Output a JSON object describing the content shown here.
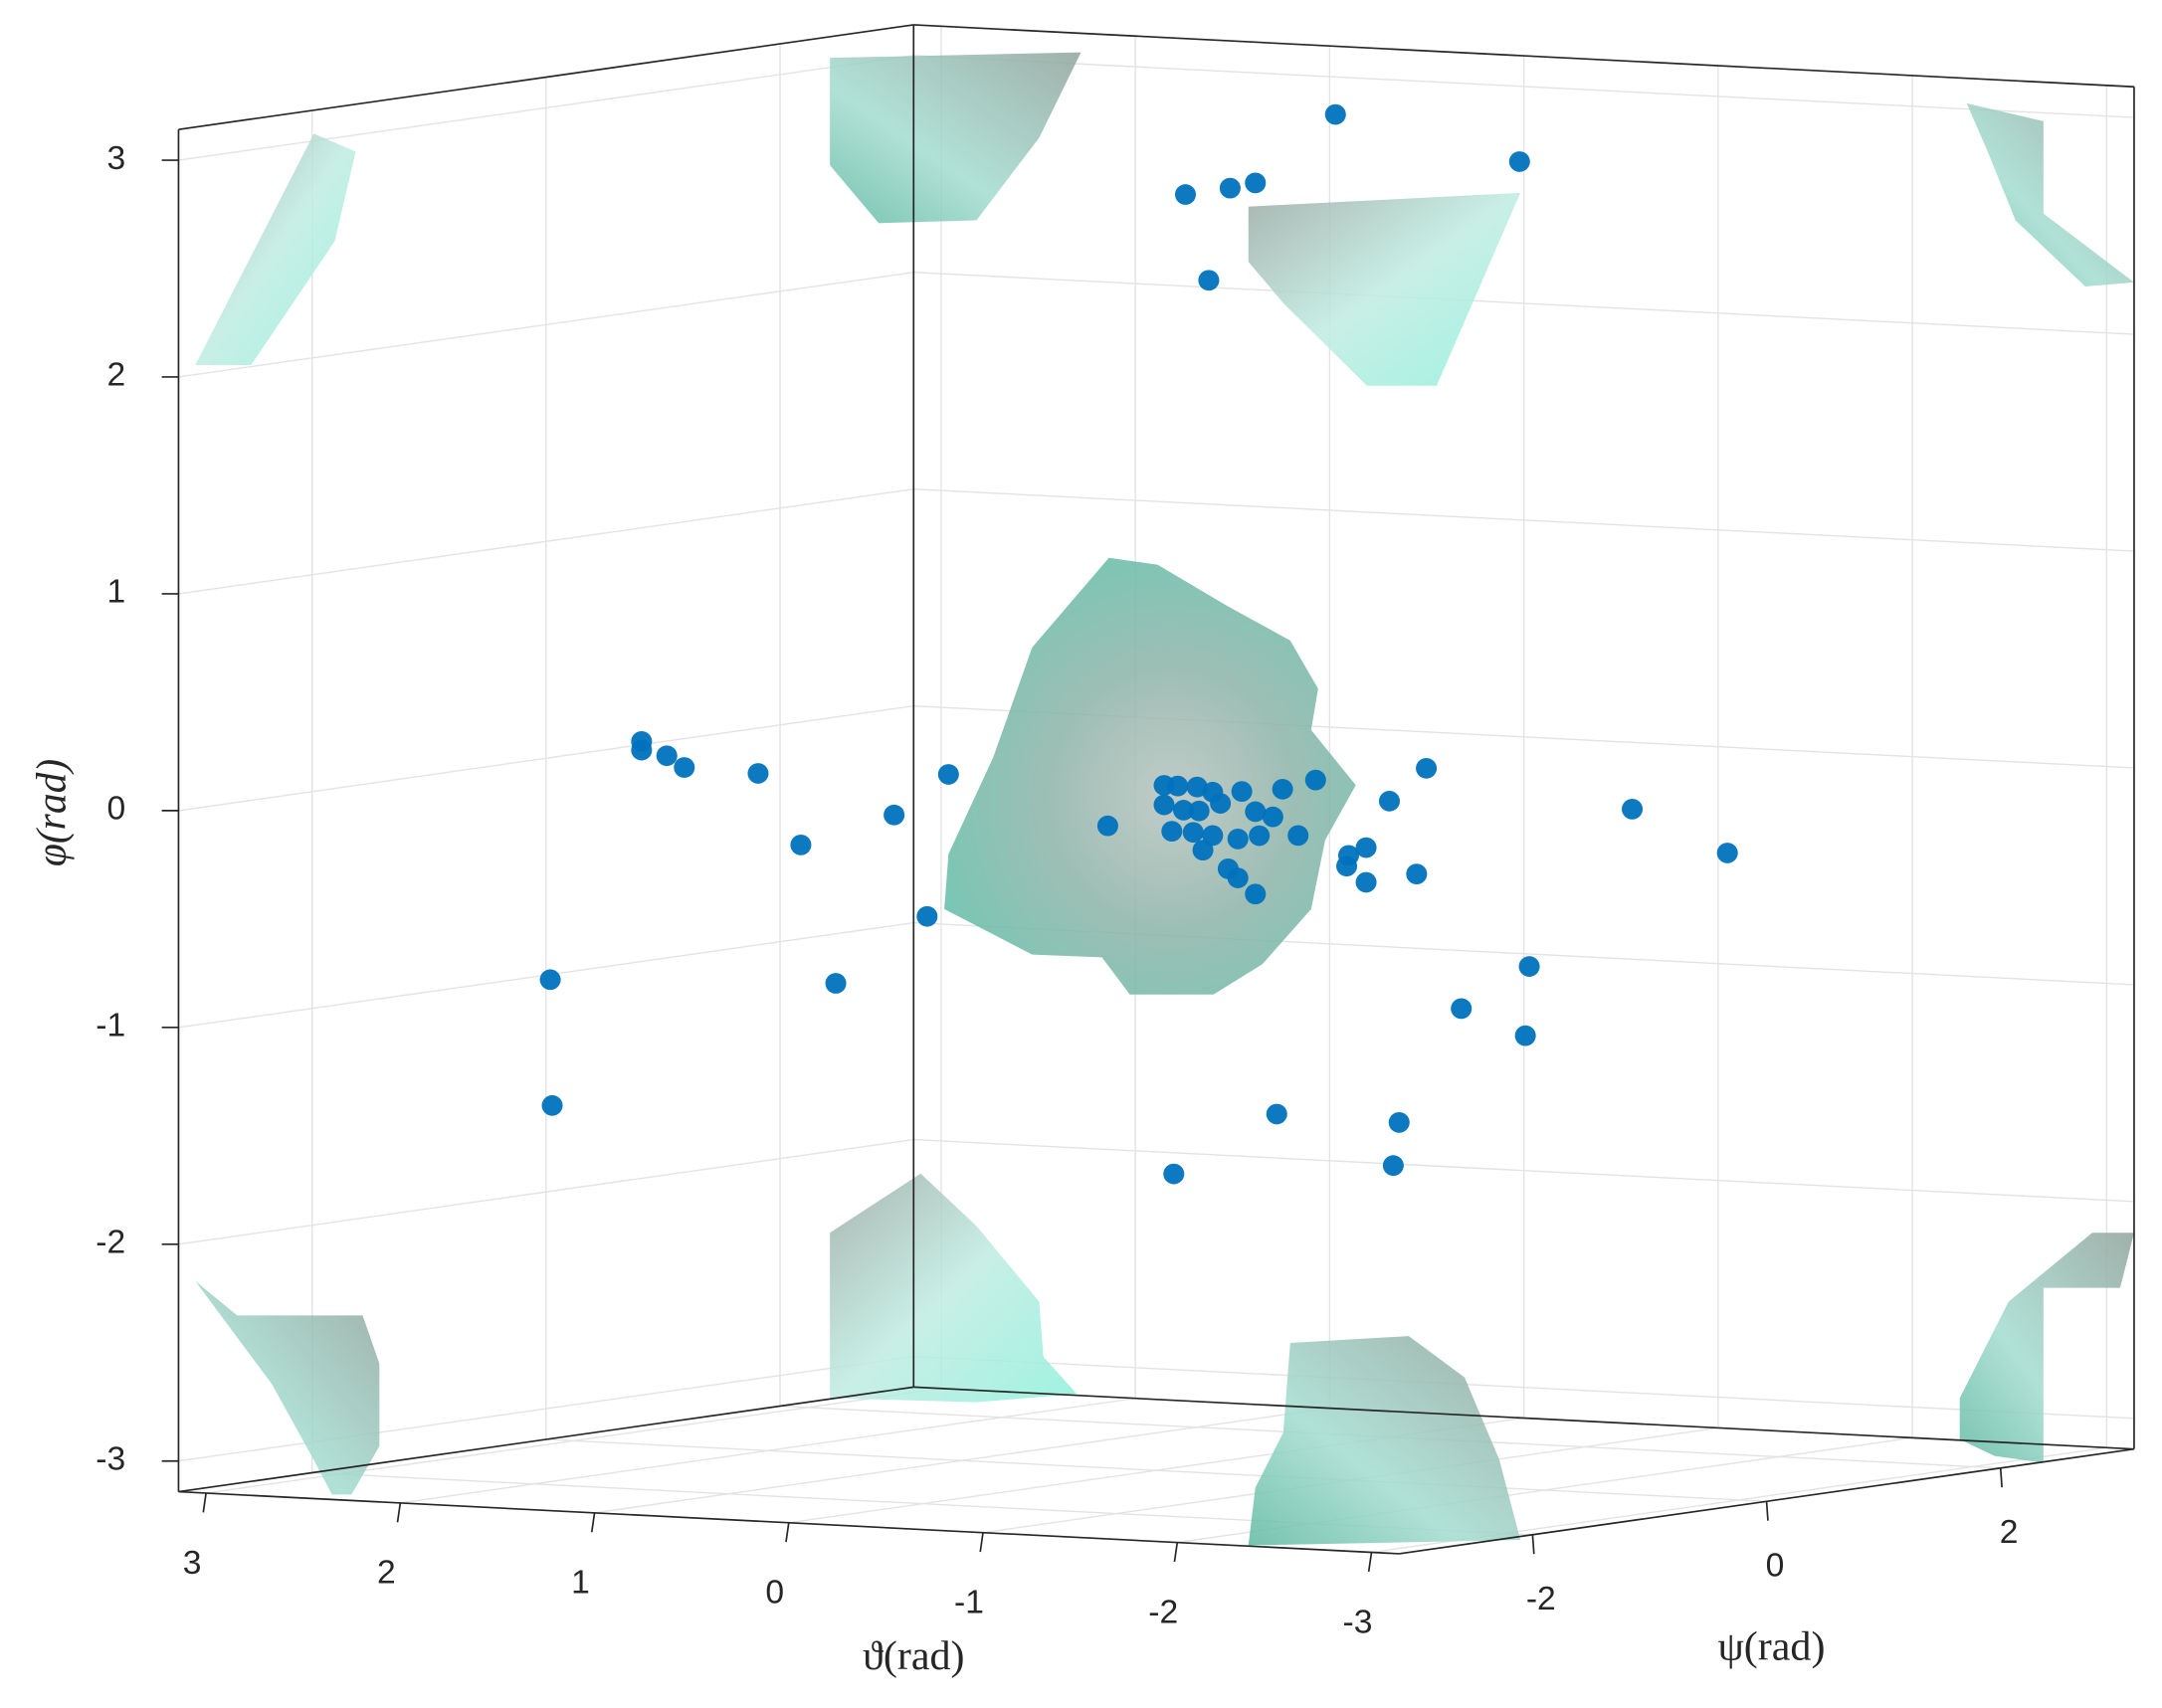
{
  "chart_data": {
    "type": "scatter3d",
    "xlabel": "ϑ(rad)",
    "ylabel": "ψ(rad)",
    "zlabel": "φ(rad)",
    "color": "#0072bd",
    "grid": true,
    "xlim": [
      -3.1416,
      3.1416
    ],
    "ylim": [
      -3.1416,
      3.1416
    ],
    "zlim": [
      -3.1416,
      3.1416
    ],
    "xticks": [
      3,
      2,
      1,
      0,
      -1,
      -2,
      -3
    ],
    "yticks": [
      -2,
      0,
      2
    ],
    "zticks": [
      3,
      2,
      1,
      0,
      -1,
      -2,
      -3
    ],
    "x": [
      -0.32,
      -1.87,
      -0.15,
      -0.38,
      -0.51,
      -0.27,
      2.65,
      2.65,
      2.52,
      2.43,
      2.05,
      1.07,
      1.35,
      1.83,
      1.18,
      3.12,
      1.65,
      3.11,
      -1.39,
      -1.2,
      -2.45,
      -2.94,
      -0.82,
      -0.65,
      0.25,
      -0.99,
      -1.08,
      -0.98,
      -1.08,
      -1.34,
      -1.92,
      -1.57,
      -1.9,
      -0.62,
      -1.25,
      -1.22,
      -0.09,
      -0.04,
      -0.11,
      -0.21,
      -0.29,
      -0.44,
      -0.04,
      -0.14,
      -0.22,
      -0.33,
      -0.51,
      -0.6,
      -0.08,
      -0.19,
      -0.29,
      -0.42,
      -0.53,
      -0.73,
      -0.24,
      -0.37,
      -0.42,
      -0.51
    ],
    "y": [
      1,
      0,
      0,
      0,
      0,
      0,
      0,
      0,
      0,
      0,
      0,
      0,
      0,
      0,
      0,
      0,
      0,
      0,
      0,
      0,
      0,
      0,
      0,
      0,
      0,
      0,
      0,
      0,
      0,
      0,
      0,
      0,
      0,
      0,
      0,
      0,
      0,
      0,
      0,
      0,
      0,
      0,
      0,
      0,
      0,
      0,
      0,
      0,
      0,
      0,
      0,
      0,
      0,
      0,
      0,
      0,
      0,
      0
    ],
    "z": [
      3.05,
      2.98,
      2.75,
      2.79,
      2.82,
      2.36,
      0.1,
      0.06,
      0.04,
      -0.01,
      -0.02,
      0.02,
      -0.18,
      -0.34,
      -0.64,
      -1.02,
      -0.97,
      -1.6,
      0.16,
      0.0,
      0.02,
      -0.16,
      0.08,
      0.03,
      -0.18,
      -0.26,
      -0.22,
      -0.31,
      -0.38,
      -0.33,
      -0.73,
      -0.94,
      -1.05,
      -1.47,
      -1.48,
      -1.68,
      -1.77,
      0.02,
      0.02,
      0.02,
      0.0,
      0.01,
      -0.07,
      -0.09,
      -0.09,
      -0.05,
      -0.08,
      -0.1,
      -0.19,
      -0.19,
      -0.2,
      -0.21,
      -0.19,
      -0.18,
      -0.27,
      -0.35,
      -0.39,
      -0.46
    ]
  }
}
